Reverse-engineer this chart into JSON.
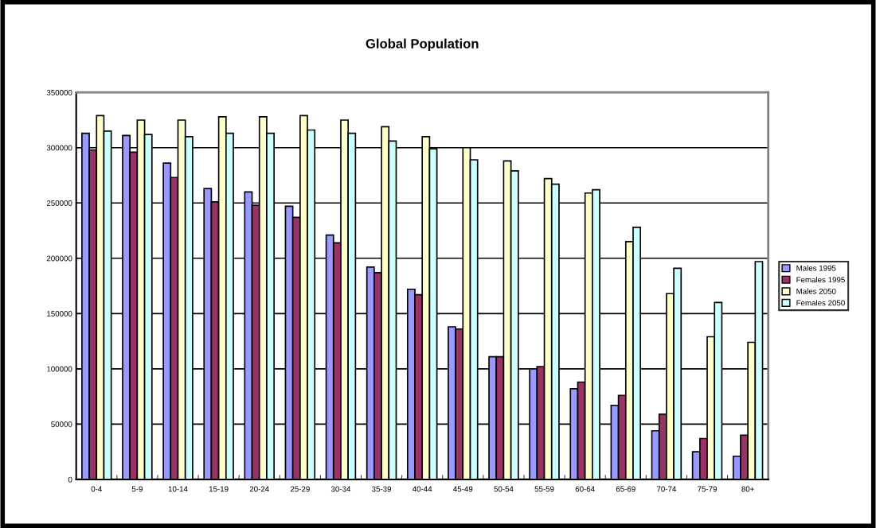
{
  "chart_data": {
    "type": "bar",
    "title": "Global Population",
    "categories": [
      "0-4",
      "5-9",
      "10-14",
      "15-19",
      "20-24",
      "25-29",
      "30-34",
      "35-39",
      "40-44",
      "45-49",
      "50-54",
      "55-59",
      "60-64",
      "65-69",
      "70-74",
      "75-79",
      "80+"
    ],
    "series": [
      {
        "name": "Males 1995",
        "color": "#9999ff",
        "values": [
          313000,
          311000,
          286000,
          263000,
          260000,
          247000,
          221000,
          192000,
          172000,
          138000,
          111000,
          100000,
          82000,
          67000,
          44000,
          25000,
          21000
        ]
      },
      {
        "name": "Females 1995",
        "color": "#993366",
        "values": [
          298000,
          296000,
          273000,
          251000,
          248000,
          237000,
          214000,
          187000,
          167000,
          136000,
          111000,
          102000,
          88000,
          76000,
          59000,
          37000,
          40000
        ]
      },
      {
        "name": "Males 2050",
        "color": "#ffffcc",
        "values": [
          329000,
          325000,
          325000,
          328000,
          328000,
          329000,
          325000,
          319000,
          310000,
          300000,
          288000,
          272000,
          259000,
          215000,
          168000,
          129000,
          124000
        ]
      },
      {
        "name": "Females 2050",
        "color": "#ccffff",
        "values": [
          315000,
          312000,
          310000,
          313000,
          313000,
          316000,
          313000,
          306000,
          299000,
          289000,
          279000,
          267000,
          262000,
          228000,
          191000,
          160000,
          197000
        ]
      }
    ],
    "ylim": [
      0,
      350000
    ],
    "yticks": [
      0,
      50000,
      100000,
      150000,
      200000,
      250000,
      300000,
      350000
    ],
    "grid": "y",
    "legend": "right"
  }
}
